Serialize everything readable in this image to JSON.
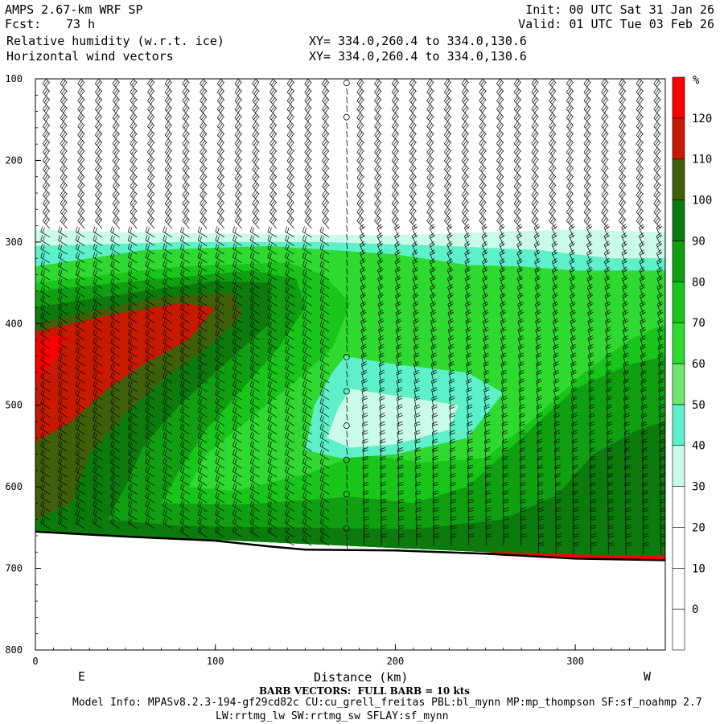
{
  "header": {
    "model": "AMPS 2.67-km WRF SP",
    "fcst_label": "Fcst:",
    "fcst_value": "73 h",
    "init": "Init: 00 UTC Sat 31 Jan 26",
    "valid": "Valid: 01 UTC Tue 03 Feb 26",
    "field1": "Relative humidity (w.r.t. ice)",
    "field2": "Horizontal wind vectors",
    "xy1": "XY= 334.0,260.4 to 334.0,130.6",
    "xy2": "XY= 334.0,260.4 to 334.0,130.6"
  },
  "footer": {
    "barb_note": "BARB VECTORS:  FULL BARB = 10 kts",
    "model_info": "Model Info: MPASv8.2.3-194-gf29cd82c CU:cu_grell_freitas PBL:bl_mynn MP:mp_thompson SF:sf_noahmp 2.7",
    "model_info2": "LW:rrtmg_lw SW:rrtmg_sw SFLAY:sf_mynn"
  },
  "chart_data": {
    "type": "heatmap",
    "xlabel": "Distance (km)",
    "x_left_end": "E",
    "x_right_end": "W",
    "ylabel": "",
    "x_range": [
      0,
      350
    ],
    "y_range": [
      800,
      100
    ],
    "x_ticks": [
      0,
      100,
      200,
      300
    ],
    "y_ticks": [
      100,
      200,
      300,
      400,
      500,
      600,
      700,
      800
    ],
    "colorbar": {
      "unit": "%",
      "levels": [
        0,
        10,
        20,
        30,
        40,
        50,
        60,
        70,
        80,
        90,
        100,
        110,
        120
      ],
      "colors": [
        "#ffffff",
        "#ffffff",
        "#ffffff",
        "#ffffff",
        "#c9fbe8",
        "#5ef0c8",
        "#6fe66f",
        "#2fd92f",
        "#19c519",
        "#109f10",
        "#0c7a0c",
        "#3f5f08",
        "#c81a00",
        "#ff0000"
      ]
    },
    "terrain_pressure": [
      {
        "x": 0,
        "p": 655
      },
      {
        "x": 50,
        "p": 661
      },
      {
        "x": 100,
        "p": 666
      },
      {
        "x": 130,
        "p": 673
      },
      {
        "x": 150,
        "p": 677
      },
      {
        "x": 200,
        "p": 678
      },
      {
        "x": 250,
        "p": 682
      },
      {
        "x": 300,
        "p": 688
      },
      {
        "x": 350,
        "p": 690
      }
    ],
    "rh_regions": [
      {
        "level": 30,
        "points": [
          [
            0,
            285
          ],
          [
            50,
            288
          ],
          [
            120,
            290
          ],
          [
            200,
            292
          ],
          [
            260,
            287
          ],
          [
            300,
            285
          ],
          [
            350,
            288
          ],
          [
            350,
            690
          ],
          [
            0,
            655
          ]
        ]
      },
      {
        "level": 40,
        "points": [
          [
            0,
            305
          ],
          [
            80,
            300
          ],
          [
            160,
            300
          ],
          [
            230,
            305
          ],
          [
            280,
            310
          ],
          [
            320,
            320
          ],
          [
            350,
            320
          ],
          [
            350,
            690
          ],
          [
            0,
            655
          ]
        ]
      },
      {
        "level": 60,
        "points": [
          [
            0,
            330
          ],
          [
            60,
            310
          ],
          [
            130,
            305
          ],
          [
            200,
            315
          ],
          [
            240,
            328
          ],
          [
            270,
            330
          ],
          [
            300,
            335
          ],
          [
            350,
            335
          ],
          [
            350,
            690
          ],
          [
            0,
            655
          ]
        ]
      },
      {
        "level": 70,
        "points": [
          [
            0,
            350
          ],
          [
            80,
            330
          ],
          [
            140,
            325
          ],
          [
            160,
            340
          ],
          [
            175,
            375
          ],
          [
            165,
            430
          ],
          [
            145,
            470
          ],
          [
            120,
            515
          ],
          [
            95,
            560
          ],
          [
            85,
            600
          ],
          [
            110,
            605
          ],
          [
            150,
            585
          ],
          [
            180,
            560
          ],
          [
            215,
            570
          ],
          [
            250,
            565
          ],
          [
            275,
            520
          ],
          [
            305,
            460
          ],
          [
            330,
            420
          ],
          [
            350,
            400
          ],
          [
            350,
            690
          ],
          [
            0,
            655
          ]
        ]
      },
      {
        "level": 80,
        "points": [
          [
            0,
            360
          ],
          [
            70,
            345
          ],
          [
            120,
            335
          ],
          [
            145,
            345
          ],
          [
            150,
            380
          ],
          [
            135,
            430
          ],
          [
            115,
            480
          ],
          [
            95,
            530
          ],
          [
            80,
            580
          ],
          [
            70,
            620
          ],
          [
            110,
            622
          ],
          [
            140,
            618
          ],
          [
            175,
            612
          ],
          [
            210,
            620
          ],
          [
            240,
            600
          ],
          [
            260,
            560
          ],
          [
            280,
            520
          ],
          [
            300,
            480
          ],
          [
            330,
            450
          ],
          [
            350,
            440
          ],
          [
            350,
            690
          ],
          [
            0,
            655
          ]
        ]
      },
      {
        "level": 90,
        "points": [
          [
            0,
            380
          ],
          [
            60,
            360
          ],
          [
            100,
            348
          ],
          [
            130,
            350
          ],
          [
            130,
            400
          ],
          [
            105,
            450
          ],
          [
            80,
            500
          ],
          [
            60,
            550
          ],
          [
            50,
            600
          ],
          [
            40,
            640
          ],
          [
            80,
            648
          ],
          [
            150,
            650
          ],
          [
            210,
            652
          ],
          [
            260,
            640
          ],
          [
            290,
            610
          ],
          [
            310,
            560
          ],
          [
            335,
            530
          ],
          [
            350,
            520
          ],
          [
            350,
            690
          ],
          [
            0,
            655
          ]
        ]
      },
      {
        "level": 100,
        "points": [
          [
            0,
            400
          ],
          [
            40,
            380
          ],
          [
            80,
            365
          ],
          [
            110,
            362
          ],
          [
            115,
            390
          ],
          [
            95,
            430
          ],
          [
            70,
            470
          ],
          [
            50,
            510
          ],
          [
            30,
            560
          ],
          [
            20,
            620
          ],
          [
            0,
            640
          ]
        ]
      },
      {
        "level": 110,
        "points": [
          [
            0,
            410
          ],
          [
            40,
            390
          ],
          [
            80,
            375
          ],
          [
            100,
            380
          ],
          [
            85,
            420
          ],
          [
            60,
            450
          ],
          [
            40,
            480
          ],
          [
            20,
            520
          ],
          [
            0,
            545
          ]
        ]
      },
      {
        "level": 120,
        "points": [
          [
            0,
            418
          ],
          [
            18,
            415
          ],
          [
            12,
            440
          ],
          [
            0,
            470
          ]
        ]
      },
      {
        "level": 120,
        "points": [
          [
            220,
            683
          ],
          [
            260,
            680
          ],
          [
            300,
            683
          ],
          [
            350,
            685
          ],
          [
            350,
            690
          ],
          [
            300,
            688
          ],
          [
            250,
            682
          ],
          [
            220,
            684
          ]
        ]
      },
      {
        "level": 40,
        "points": [
          [
            172,
            440
          ],
          [
            200,
            450
          ],
          [
            240,
            460
          ],
          [
            260,
            485
          ],
          [
            240,
            540
          ],
          [
            200,
            560
          ],
          [
            170,
            565
          ],
          [
            150,
            555
          ],
          [
            155,
            500
          ],
          [
            165,
            460
          ]
        ]
      },
      {
        "level": 30,
        "points": [
          [
            175,
            480
          ],
          [
            205,
            490
          ],
          [
            235,
            500
          ],
          [
            230,
            530
          ],
          [
            200,
            548
          ],
          [
            175,
            552
          ],
          [
            162,
            540
          ],
          [
            168,
            505
          ]
        ]
      }
    ]
  }
}
